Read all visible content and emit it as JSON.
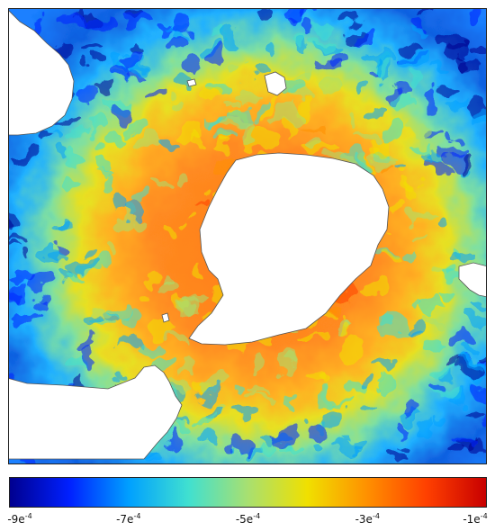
{
  "map": {
    "variable_label": "",
    "colormap": [
      "#00008f",
      "#0020ff",
      "#00a0ff",
      "#40e0d0",
      "#a8e070",
      "#f0e000",
      "#ff9000",
      "#ff4000",
      "#c80000"
    ]
  },
  "colorbar": {
    "ticks": [
      {
        "base": "-9e",
        "exp": "-4"
      },
      {
        "base": "-7e",
        "exp": "-4"
      },
      {
        "base": "-5e",
        "exp": "-4"
      },
      {
        "base": "-3e",
        "exp": "-4"
      },
      {
        "base": "-1e",
        "exp": "-4"
      }
    ],
    "min_value": -0.0009,
    "max_value": -0.0001
  }
}
